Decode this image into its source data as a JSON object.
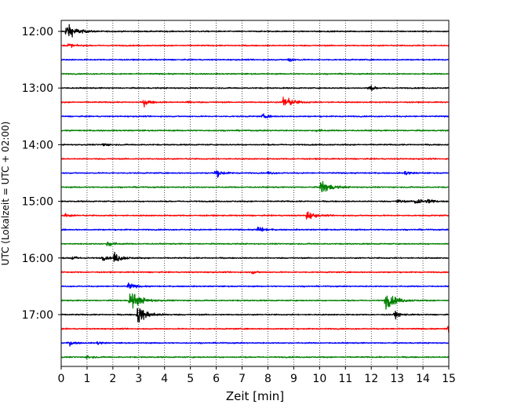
{
  "chart_data": {
    "type": "line",
    "title": "",
    "xlabel": "Zeit  [min]",
    "ylabel": "UTC (Lokalzeit = UTC + 02:00)",
    "xlim": [
      0,
      15
    ],
    "x_ticks": [
      "0",
      "1",
      "2",
      "3",
      "4",
      "5",
      "6",
      "7",
      "8",
      "9",
      "10",
      "11",
      "12",
      "13",
      "14",
      "15"
    ],
    "y_ticks": [
      "12:00",
      "13:00",
      "14:00",
      "15:00",
      "16:00",
      "17:00"
    ],
    "grid": "vertical dotted lines at each minute",
    "trace_interval_minutes": 15,
    "color_cycle": [
      "#000000",
      "#ff0000",
      "#0000ff",
      "#008000"
    ],
    "traces": [
      {
        "start": "12:00",
        "color": "#000000",
        "events": [
          {
            "t": 0.2,
            "amp": 1.3
          }
        ]
      },
      {
        "start": "12:15",
        "color": "#ff0000",
        "events": [
          {
            "t": 0.25,
            "amp": 0.4
          }
        ]
      },
      {
        "start": "12:30",
        "color": "#0000ff",
        "events": [
          {
            "t": 8.8,
            "amp": 0.35
          }
        ]
      },
      {
        "start": "12:45",
        "color": "#008000",
        "events": []
      },
      {
        "start": "13:00",
        "color": "#000000",
        "events": [
          {
            "t": 11.9,
            "amp": 0.45
          }
        ]
      },
      {
        "start": "13:15",
        "color": "#ff0000",
        "events": [
          {
            "t": 3.2,
            "amp": 0.55
          },
          {
            "t": 4.9,
            "amp": 0.2
          },
          {
            "t": 8.6,
            "amp": 1.1
          }
        ]
      },
      {
        "start": "13:30",
        "color": "#0000ff",
        "events": [
          {
            "t": 7.8,
            "amp": 0.35
          }
        ]
      },
      {
        "start": "13:45",
        "color": "#008000",
        "events": [
          {
            "t": 9.9,
            "amp": 0.25
          }
        ]
      },
      {
        "start": "14:00",
        "color": "#000000",
        "events": [
          {
            "t": 1.6,
            "amp": 0.3
          }
        ]
      },
      {
        "start": "14:15",
        "color": "#ff0000",
        "events": []
      },
      {
        "start": "14:30",
        "color": "#0000ff",
        "events": [
          {
            "t": 5.95,
            "amp": 0.7
          },
          {
            "t": 8.0,
            "amp": 0.25
          },
          {
            "t": 13.3,
            "amp": 0.35
          }
        ]
      },
      {
        "start": "14:45",
        "color": "#008000",
        "events": [
          {
            "t": 10.05,
            "amp": 1.2
          }
        ]
      },
      {
        "start": "15:00",
        "color": "#000000",
        "events": [
          {
            "t": 13.0,
            "amp": 0.35
          },
          {
            "t": 13.7,
            "amp": 0.75
          },
          {
            "t": 14.2,
            "amp": 0.4
          }
        ]
      },
      {
        "start": "15:15",
        "color": "#ff0000",
        "events": [
          {
            "t": 0.15,
            "amp": 0.3
          },
          {
            "t": 9.5,
            "amp": 0.75
          }
        ]
      },
      {
        "start": "15:30",
        "color": "#0000ff",
        "events": [
          {
            "t": 7.6,
            "amp": 0.55
          }
        ]
      },
      {
        "start": "15:45",
        "color": "#008000",
        "events": [
          {
            "t": 1.8,
            "amp": 0.5
          }
        ]
      },
      {
        "start": "16:00",
        "color": "#000000",
        "events": [
          {
            "t": 0.4,
            "amp": 0.35
          },
          {
            "t": 1.6,
            "amp": 0.4
          },
          {
            "t": 2.05,
            "amp": 0.85
          }
        ]
      },
      {
        "start": "16:15",
        "color": "#ff0000",
        "events": [
          {
            "t": 7.4,
            "amp": 0.25
          }
        ]
      },
      {
        "start": "16:30",
        "color": "#0000ff",
        "events": [
          {
            "t": 2.6,
            "amp": 0.55
          }
        ]
      },
      {
        "start": "16:45",
        "color": "#008000",
        "events": [
          {
            "t": 2.65,
            "amp": 1.5
          },
          {
            "t": 12.55,
            "amp": 1.4
          }
        ]
      },
      {
        "start": "17:00",
        "color": "#000000",
        "events": [
          {
            "t": 2.95,
            "amp": 1.4
          },
          {
            "t": 12.9,
            "amp": 0.5
          }
        ]
      },
      {
        "start": "17:15",
        "color": "#ff0000",
        "events": [
          {
            "t": 14.95,
            "amp": 0.8
          }
        ]
      },
      {
        "start": "17:30",
        "color": "#0000ff",
        "events": [
          {
            "t": 0.3,
            "amp": 0.4
          },
          {
            "t": 1.4,
            "amp": 0.25
          }
        ]
      },
      {
        "start": "17:45",
        "color": "#008000",
        "events": [
          {
            "t": 1.0,
            "amp": 0.3
          }
        ]
      }
    ]
  }
}
